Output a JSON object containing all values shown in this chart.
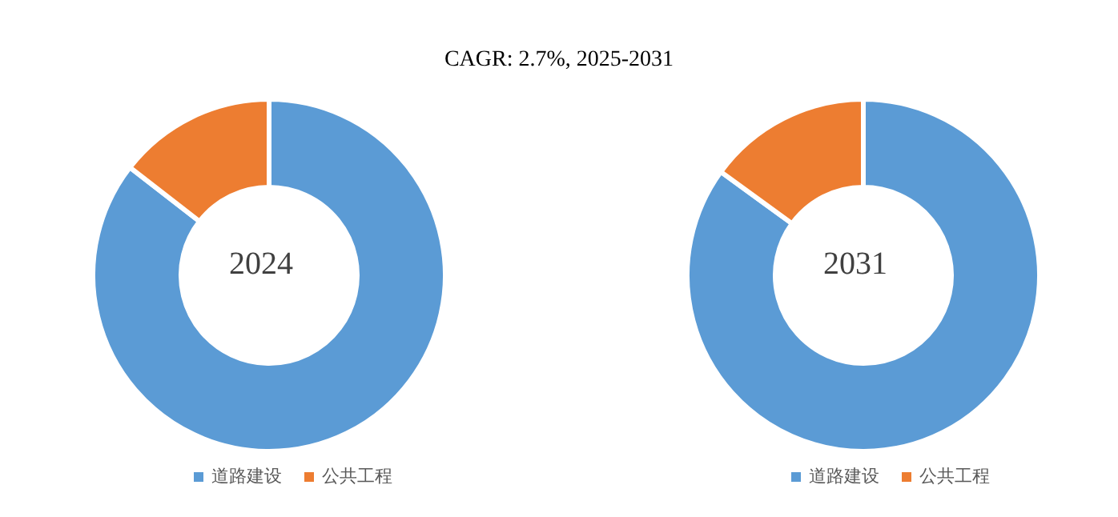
{
  "chart_data": [
    {
      "type": "donut",
      "title": "2024",
      "annotations": [
        "CAGR: 2.7%, 2025-2031"
      ],
      "categories": [
        "道路建设",
        "公共工程"
      ],
      "values": [
        85.5,
        14.5
      ],
      "colors": [
        "#5b9bd5",
        "#ed7d31"
      ],
      "legend": "bottom"
    },
    {
      "type": "donut",
      "title": "2031",
      "categories": [
        "道路建设",
        "公共工程"
      ],
      "values": [
        85,
        15
      ],
      "colors": [
        "#5b9bd5",
        "#ed7d31"
      ],
      "legend": "bottom"
    }
  ]
}
